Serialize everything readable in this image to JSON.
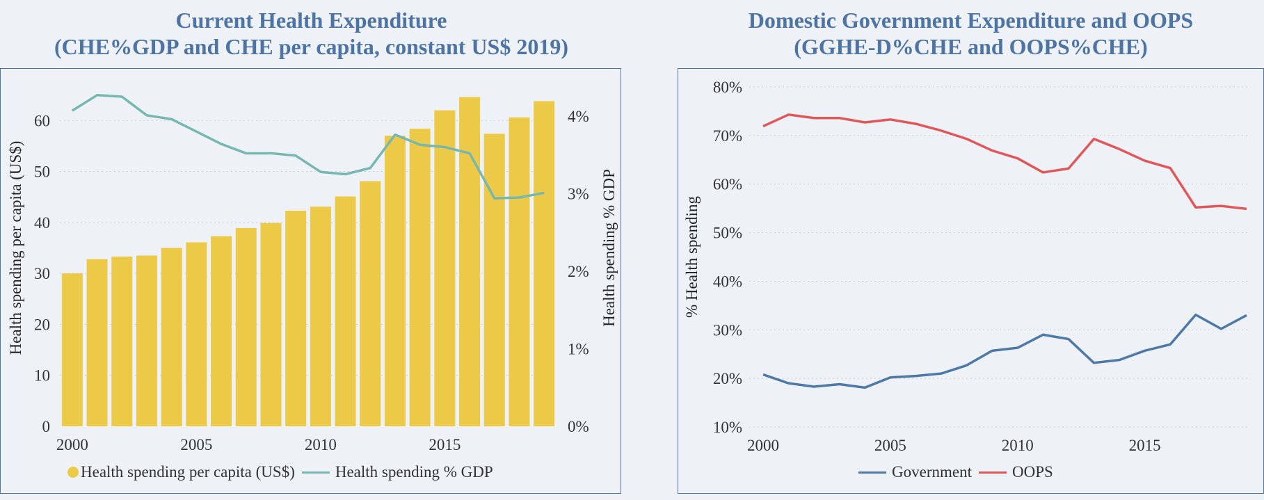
{
  "chart_data": [
    {
      "type": "bar+line",
      "title_line1": "Current Health Expenditure",
      "title_line2": "(CHE%GDP and CHE per capita, constant US$ 2019)",
      "x": [
        2000,
        2001,
        2002,
        2003,
        2004,
        2005,
        2006,
        2007,
        2008,
        2009,
        2010,
        2011,
        2012,
        2013,
        2014,
        2015,
        2016,
        2017,
        2018,
        2019
      ],
      "x_ticks": [
        "2000",
        "2005",
        "2010",
        "2015"
      ],
      "ylabel": "Health spending per capita (US$)",
      "ylim": [
        0,
        70
      ],
      "y_ticks": [
        "0",
        "10",
        "20",
        "30",
        "40",
        "50",
        "60"
      ],
      "y2label": "Health spending % GDP",
      "y2lim": [
        0,
        4.6
      ],
      "y2_ticks": [
        "0%",
        "1%",
        "2%",
        "3%",
        "4%"
      ],
      "grid": "horizontal dotted",
      "series": [
        {
          "name": "Health spending per capita (US$)",
          "kind": "bar",
          "axis": "left",
          "color": "#edc948",
          "values": [
            30.0,
            32.8,
            33.3,
            33.5,
            35.0,
            36.1,
            37.3,
            38.9,
            39.9,
            42.3,
            43.1,
            45.1,
            48.1,
            57.0,
            58.4,
            62.0,
            64.6,
            57.4,
            60.6,
            63.8
          ]
        },
        {
          "name": "Health spending % GDP",
          "kind": "line",
          "axis": "right",
          "color": "#76b7b2",
          "values": [
            4.07,
            4.27,
            4.25,
            4.01,
            3.96,
            3.8,
            3.64,
            3.52,
            3.52,
            3.49,
            3.28,
            3.25,
            3.33,
            3.76,
            3.63,
            3.6,
            3.52,
            2.94,
            2.95,
            3.01
          ]
        }
      ]
    },
    {
      "type": "line",
      "title_line1": "Domestic Government Expenditure and OOPS",
      "title_line2": "(GGHE-D%CHE and OOPS%CHE)",
      "x": [
        2000,
        2001,
        2002,
        2003,
        2004,
        2005,
        2006,
        2007,
        2008,
        2009,
        2010,
        2011,
        2012,
        2013,
        2014,
        2015,
        2016,
        2017,
        2018,
        2019
      ],
      "x_ticks": [
        "2000",
        "2005",
        "2010",
        "2015"
      ],
      "ylabel": "% Health spending",
      "ylim": [
        10,
        80
      ],
      "y_ticks": [
        "10%",
        "20%",
        "30%",
        "40%",
        "50%",
        "60%",
        "70%",
        "80%"
      ],
      "grid": "horizontal dotted",
      "series": [
        {
          "name": "Government",
          "color": "#4e79a7",
          "values": [
            20.8,
            19.0,
            18.3,
            18.8,
            18.1,
            20.2,
            20.5,
            21.0,
            22.7,
            25.7,
            26.3,
            29.0,
            28.1,
            23.2,
            23.8,
            25.7,
            27.0,
            33.1,
            30.2,
            33.0
          ]
        },
        {
          "name": "OOPS",
          "color": "#e15759",
          "values": [
            71.9,
            74.3,
            73.6,
            73.6,
            72.7,
            73.3,
            72.4,
            71.0,
            69.3,
            66.9,
            65.3,
            62.4,
            63.2,
            69.3,
            67.2,
            64.8,
            63.3,
            55.2,
            55.5,
            54.9
          ]
        }
      ]
    }
  ]
}
